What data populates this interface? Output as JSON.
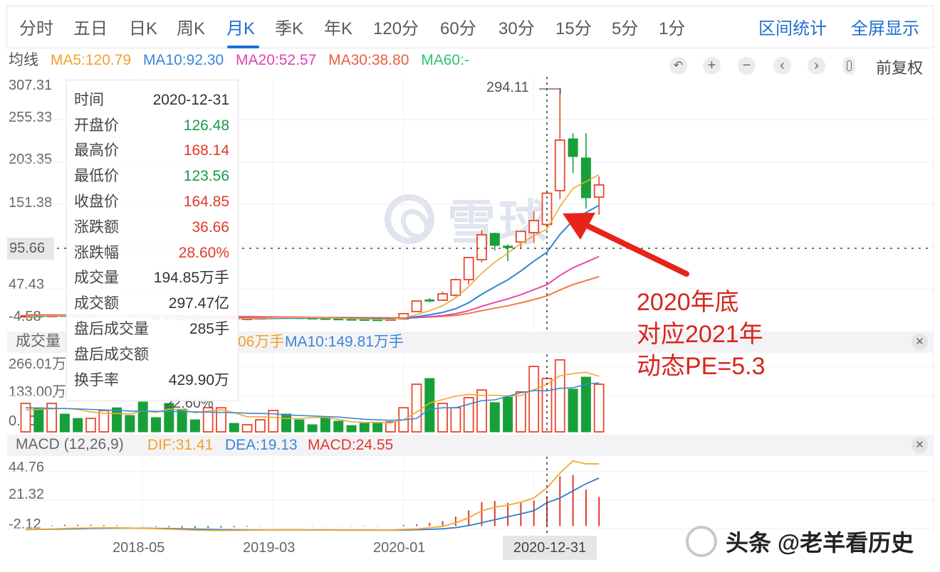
{
  "toolbar": {
    "tabs": [
      {
        "label": "分时"
      },
      {
        "label": "五日"
      },
      {
        "label": "日K"
      },
      {
        "label": "周K"
      },
      {
        "label": "月K"
      },
      {
        "label": "季K"
      },
      {
        "label": "年K"
      },
      {
        "label": "120分"
      },
      {
        "label": "60分"
      },
      {
        "label": "30分"
      },
      {
        "label": "15分"
      },
      {
        "label": "5分"
      },
      {
        "label": "1分"
      }
    ],
    "active_tab": "月K",
    "right_links": [
      {
        "label": "区间统计"
      },
      {
        "label": "全屏显示"
      }
    ]
  },
  "ma_legend": {
    "title": "均线",
    "items": [
      {
        "label": "MA5:120.79",
        "color": "#f2a22a"
      },
      {
        "label": "MA10:92.30",
        "color": "#3a86d6"
      },
      {
        "label": "MA20:52.57",
        "color": "#e043b6"
      },
      {
        "label": "MA30:38.80",
        "color": "#e8603c"
      },
      {
        "label": "MA60:-",
        "color": "#2fc46e"
      }
    ]
  },
  "chart_controls": {
    "buttons": [
      {
        "icon": "undo-icon",
        "glyph": "↶"
      },
      {
        "icon": "zoom-in-icon",
        "glyph": "+"
      },
      {
        "icon": "zoom-out-icon",
        "glyph": "−"
      },
      {
        "icon": "chevron-left-icon",
        "glyph": "‹"
      },
      {
        "icon": "chevron-right-icon",
        "glyph": "›"
      }
    ],
    "adjust_label": "前复权"
  },
  "main_chart": {
    "y_labels": [
      "307.31",
      "255.33",
      "203.35",
      "151.38",
      "47.43",
      "-4.58"
    ],
    "crosshair_price": "95.66",
    "high_label": "294.11"
  },
  "tooltip": {
    "rows": [
      {
        "label": "时间",
        "value": "2020-12-31",
        "color": "#333333"
      },
      {
        "label": "开盘价",
        "value": "126.48",
        "color": "#1a9a48"
      },
      {
        "label": "最高价",
        "value": "168.14",
        "color": "#e03a2a"
      },
      {
        "label": "最低价",
        "value": "123.56",
        "color": "#1a9a48"
      },
      {
        "label": "收盘价",
        "value": "164.85",
        "color": "#e03a2a"
      },
      {
        "label": "涨跌额",
        "value": "36.66",
        "color": "#e03a2a"
      },
      {
        "label": "涨跌幅",
        "value": "28.60%",
        "color": "#e03a2a"
      },
      {
        "label": "成交量",
        "value": "194.85万手",
        "color": "#333333"
      },
      {
        "label": "成交额",
        "value": "297.47亿",
        "color": "#333333"
      },
      {
        "label": "盘后成交量",
        "value": "285手",
        "color": "#333333"
      },
      {
        "label": "盘后成交额",
        "value": "",
        "color": "#333333"
      },
      {
        "label": "换手率",
        "value": "429.90万",
        "color": "#333333"
      }
    ],
    "overflow_text": "22.60%"
  },
  "volume_panel": {
    "title": "成交量",
    "ma5_visible": "06万手",
    "ma10": "MA10:149.81万手",
    "y_labels": [
      "266.01万",
      "133.00万",
      "0.00"
    ]
  },
  "macd_panel": {
    "title": "MACD (12,26,9)",
    "dif": "DIF:31.41",
    "dea": "DEA:19.13",
    "macd": "MACD:24.55",
    "y_labels": [
      "44.76",
      "21.32",
      "-2.12"
    ]
  },
  "x_axis": {
    "labels": [
      "2018-05",
      "2019-03",
      "2020-01"
    ],
    "crosshair_date": "2020-12-31"
  },
  "annotation": {
    "lines": [
      "2020年底",
      "对应2021年",
      "动态PE=5.3"
    ],
    "color": "#d8261c"
  },
  "watermarks": {
    "center": "雪球",
    "footer": "头条 @老羊看历史"
  },
  "colors": {
    "up": "#e8482e",
    "down": "#17a03a",
    "accent": "#1b6fd6",
    "arrow": "#e8231a"
  },
  "chart_data": {
    "type": "candlestick",
    "title": "月K",
    "period": "monthly",
    "x_first": "2017-08",
    "x_last": "2021-04",
    "x_tick_labels": [
      {
        "index": 9,
        "label": "2018-05"
      },
      {
        "index": 19,
        "label": "2019-03"
      },
      {
        "index": 29,
        "label": "2020-01"
      }
    ],
    "crosshair_index": 40,
    "crosshair_date": "2020-12-31",
    "ylim_price": [
      -4.58,
      307.31
    ],
    "ohlc": [
      [
        13,
        15,
        12,
        14.5
      ],
      [
        14.5,
        15,
        13,
        13.5
      ],
      [
        13.5,
        15.5,
        13,
        15
      ],
      [
        15,
        15.2,
        13.5,
        14
      ],
      [
        14,
        14.5,
        13,
        13.4
      ],
      [
        13.4,
        14.8,
        13,
        14.2
      ],
      [
        14.2,
        15.8,
        14,
        15.2
      ],
      [
        15.2,
        15.4,
        13.8,
        14.1
      ],
      [
        14.1,
        14.3,
        13,
        13.3
      ],
      [
        13.3,
        13.5,
        11.8,
        12.2
      ],
      [
        12.2,
        12.6,
        11.5,
        11.8
      ],
      [
        11.8,
        12,
        10.5,
        10.9
      ],
      [
        10.9,
        11.2,
        10,
        10.3
      ],
      [
        10.3,
        10.6,
        9.8,
        10
      ],
      [
        10,
        11.2,
        9.8,
        10.8
      ],
      [
        10.8,
        12,
        10.5,
        11.6
      ],
      [
        11.6,
        11.8,
        10.8,
        11
      ],
      [
        11,
        11.8,
        10.8,
        11.4
      ],
      [
        11.4,
        12.4,
        11.2,
        12.1
      ],
      [
        12.1,
        13.4,
        12,
        13
      ],
      [
        13,
        13.2,
        12,
        12.4
      ],
      [
        12.4,
        12.6,
        11.6,
        11.9
      ],
      [
        11.9,
        12,
        11.2,
        11.4
      ],
      [
        11.4,
        11.6,
        10.6,
        10.9
      ],
      [
        10.9,
        11.2,
        10.2,
        10.5
      ],
      [
        10.5,
        10.8,
        10,
        10.2
      ],
      [
        10.2,
        10.5,
        9.7,
        9.9
      ],
      [
        9.9,
        10.2,
        9.4,
        9.6
      ],
      [
        9.6,
        11,
        9.4,
        10.6
      ],
      [
        10.6,
        17.5,
        10.4,
        17
      ],
      [
        19.5,
        33,
        19,
        32.6
      ],
      [
        34,
        36,
        31,
        33
      ],
      [
        33.5,
        44,
        33,
        41.3
      ],
      [
        39.6,
        60,
        38,
        58.8
      ],
      [
        58.8,
        86.5,
        53,
        85.9
      ],
      [
        83.3,
        119.8,
        79.8,
        113.8
      ],
      [
        115.6,
        116.5,
        94.6,
        100.8
      ],
      [
        100,
        102,
        81.5,
        98
      ],
      [
        105,
        118,
        98,
        118
      ],
      [
        116.5,
        142.6,
        103.4,
        131.3
      ],
      [
        126.48,
        168.14,
        123.56,
        164.85
      ],
      [
        168,
        294.11,
        157.5,
        230
      ],
      [
        231.7,
        238.5,
        189.5,
        209.9
      ],
      [
        208.2,
        238.5,
        146,
        159.3
      ],
      [
        160.1,
        185.5,
        138.5,
        175
      ]
    ],
    "ma": {
      "MA5": [
        14.2,
        14.3,
        14.4,
        14.4,
        14.2,
        14.1,
        14.4,
        14.6,
        14.3,
        13.8,
        13.3,
        12.5,
        11.7,
        11.0,
        10.8,
        10.7,
        10.9,
        11.0,
        11.2,
        11.8,
        12.1,
        12.1,
        12.2,
        11.9,
        11.3,
        10.8,
        10.4,
        10.1,
        10.2,
        11.5,
        15.9,
        20.6,
        26.9,
        36.5,
        50.3,
        66.6,
        80.1,
        91.5,
        103.3,
        112.4,
        120.79,
        148.4,
        170.8,
        179.1,
        187.8
      ],
      "MA10": [
        14.0,
        14.1,
        14.2,
        14.3,
        14.3,
        14.2,
        14.2,
        14.3,
        14.3,
        13.8,
        13.5,
        13.1,
        12.6,
        12.2,
        11.8,
        11.4,
        11.1,
        10.9,
        10.9,
        11.1,
        11.3,
        11.5,
        11.6,
        11.6,
        11.6,
        11.5,
        11.4,
        11.2,
        11.0,
        11.5,
        13.3,
        15.6,
        18.6,
        23.1,
        30.4,
        40.8,
        49.8,
        58.6,
        69.4,
        81.4,
        92.3,
        114.3,
        131.1,
        141.2,
        150.1
      ],
      "MA20": [
        15.0,
        15.0,
        14.9,
        14.9,
        14.8,
        14.7,
        14.7,
        14.6,
        14.5,
        14.3,
        14.1,
        13.9,
        13.6,
        13.3,
        13.0,
        12.8,
        12.6,
        12.5,
        12.4,
        12.4,
        12.3,
        12.2,
        12.1,
        12.0,
        11.9,
        11.8,
        11.6,
        11.5,
        11.4,
        11.3,
        12.1,
        13.2,
        14.6,
        16.9,
        20.7,
        26.1,
        30.7,
        35.1,
        40.3,
        46.4,
        52.57,
        63.9,
        73.4,
        80.1,
        87.2
      ],
      "MA30": [
        15.5,
        15.5,
        15.4,
        15.4,
        15.3,
        15.3,
        15.2,
        15.2,
        15.1,
        15.0,
        14.9,
        14.7,
        14.5,
        14.3,
        14.1,
        13.9,
        13.7,
        13.5,
        13.3,
        13.1,
        12.9,
        12.7,
        12.5,
        12.4,
        12.3,
        12.2,
        12.1,
        12.0,
        11.9,
        11.9,
        12.4,
        12.9,
        13.6,
        14.8,
        17.3,
        20.7,
        23.7,
        26.7,
        30.3,
        34.3,
        38.8,
        46.1,
        52.7,
        57.6,
        62.6
      ]
    },
    "volume_wan": [
      104,
      88,
      104,
      65,
      49,
      49,
      78,
      88,
      60,
      109,
      52,
      104,
      83,
      44,
      88,
      88,
      31,
      26,
      44,
      78,
      65,
      44,
      26,
      52,
      39,
      23,
      31,
      31,
      36,
      88,
      174,
      195,
      104,
      88,
      125,
      153,
      107,
      127,
      146,
      239,
      194.85,
      263,
      156,
      200,
      174
    ],
    "volume_ma": {
      "MA5": [
        80,
        82,
        84,
        86,
        82,
        73,
        68,
        67,
        65,
        77,
        71,
        83,
        82,
        70,
        76,
        81,
        70,
        55,
        55,
        53,
        49,
        48,
        52,
        53,
        45,
        37,
        34,
        35,
        32,
        44,
        72,
        105,
        118,
        130,
        137,
        133,
        134,
        131,
        132,
        154,
        174,
        205,
        213,
        218,
        203
      ],
      "MA10": [
        88,
        87,
        86,
        85,
        84,
        82,
        80,
        78,
        76,
        76,
        75,
        75,
        74,
        73,
        72,
        71,
        70,
        68,
        67,
        66,
        62,
        60,
        58,
        56,
        54,
        50,
        46,
        44,
        42,
        44,
        49,
        83,
        88,
        88,
        101,
        114,
        117,
        130,
        143,
        151,
        149.81,
        159,
        161,
        174,
        179
      ]
    },
    "ylim_volume_wan": [
      0,
      266.01
    ],
    "macd": {
      "DIF": [
        -2.8,
        -2.7,
        -2.4,
        -2.0,
        -1.8,
        -1.6,
        -1.5,
        -1.5,
        -1.7,
        -1.9,
        -2.2,
        -2.6,
        -3.0,
        -3.4,
        -3.6,
        -3.7,
        -3.6,
        -3.5,
        -3.3,
        -3.2,
        -3.2,
        -3.2,
        -3.3,
        -3.3,
        -3.4,
        -3.4,
        -3.5,
        -3.5,
        -3.4,
        -2.8,
        -2.4,
        -1.5,
        -0.3,
        2.6,
        6.7,
        12.5,
        15.5,
        17.2,
        19.6,
        23.1,
        31.41,
        43.6,
        53.6,
        51.2,
        51.2
      ],
      "DEA": [
        -2.9,
        -2.8,
        -2.7,
        -2.5,
        -2.3,
        -2.1,
        -1.9,
        -1.8,
        -1.8,
        -1.8,
        -1.9,
        -2.1,
        -2.3,
        -2.6,
        -2.8,
        -3.0,
        -3.1,
        -3.2,
        -3.2,
        -3.2,
        -3.2,
        -3.2,
        -3.2,
        -3.2,
        -3.3,
        -3.3,
        -3.3,
        -3.4,
        -3.4,
        -3.3,
        -3.1,
        -2.8,
        -2.3,
        -1.3,
        0.3,
        2.7,
        5.2,
        7.6,
        10.0,
        12.6,
        19.13,
        23.1,
        29.0,
        34.8,
        39.5
      ],
      "MACD": [
        0,
        0.2,
        0.6,
        1,
        1,
        1,
        0.8,
        0.6,
        0.2,
        -0.2,
        -0.6,
        -1,
        -1.4,
        -1.6,
        -1.6,
        -1.4,
        -1,
        -0.6,
        -0.2,
        0,
        0,
        0,
        -0.2,
        -0.2,
        -0.2,
        -0.2,
        -0.4,
        -0.2,
        0,
        1,
        1.4,
        2.6,
        4,
        7.8,
        12.8,
        19.6,
        20.6,
        19.2,
        19.2,
        21,
        24.55,
        41,
        42,
        30,
        24
      ]
    },
    "ylim_macd": [
      -2.12,
      44.76
    ],
    "annotations": [
      {
        "type": "max_label",
        "index": 41,
        "value": 294.11
      },
      {
        "type": "arrow",
        "target_index": 40,
        "text": "2020年底 对应2021年 动态PE=5.3"
      }
    ]
  }
}
